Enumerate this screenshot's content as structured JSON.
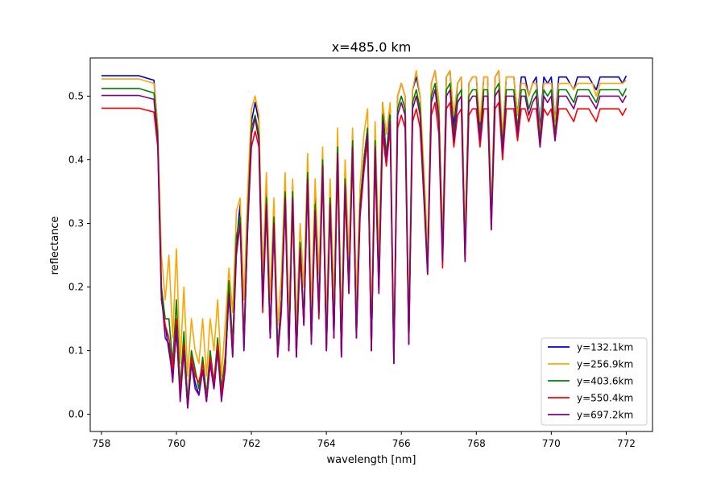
{
  "chart_data": {
    "type": "line",
    "title": "x=485.0 km",
    "xlabel": "wavelength [nm]",
    "ylabel": "reflectance",
    "xlim": [
      757.7,
      772.7
    ],
    "ylim": [
      -0.027,
      0.56
    ],
    "xticks": [
      758,
      760,
      762,
      764,
      766,
      768,
      770,
      772
    ],
    "xtick_labels": [
      "758",
      "760",
      "762",
      "764",
      "766",
      "768",
      "770",
      "772"
    ],
    "yticks": [
      0.0,
      0.1,
      0.2,
      0.3,
      0.4,
      0.5
    ],
    "ytick_labels": [
      "0.0",
      "0.1",
      "0.2",
      "0.3",
      "0.4",
      "0.5"
    ],
    "grid": false,
    "legend_position": "lower right",
    "x": [
      758.0,
      759.0,
      759.4,
      759.5,
      759.6,
      759.7,
      759.8,
      759.9,
      760.0,
      760.1,
      760.2,
      760.3,
      760.4,
      760.5,
      760.6,
      760.7,
      760.8,
      760.9,
      761.0,
      761.1,
      761.2,
      761.3,
      761.4,
      761.5,
      761.6,
      761.7,
      761.8,
      761.9,
      762.0,
      762.1,
      762.2,
      762.3,
      762.4,
      762.5,
      762.6,
      762.7,
      762.8,
      762.9,
      763.0,
      763.1,
      763.2,
      763.3,
      763.4,
      763.5,
      763.6,
      763.7,
      763.8,
      763.9,
      764.0,
      764.1,
      764.2,
      764.3,
      764.4,
      764.5,
      764.6,
      764.7,
      764.8,
      764.9,
      765.0,
      765.1,
      765.2,
      765.3,
      765.4,
      765.5,
      765.6,
      765.7,
      765.8,
      765.9,
      766.0,
      766.1,
      766.2,
      766.3,
      766.4,
      766.5,
      766.6,
      766.7,
      766.8,
      766.9,
      767.0,
      767.1,
      767.2,
      767.3,
      767.4,
      767.5,
      767.6,
      767.7,
      767.8,
      767.9,
      768.0,
      768.1,
      768.2,
      768.3,
      768.4,
      768.5,
      768.6,
      768.7,
      768.8,
      768.9,
      769.0,
      769.1,
      769.2,
      769.3,
      769.4,
      769.5,
      769.6,
      769.7,
      769.8,
      769.9,
      770.0,
      770.1,
      770.2,
      770.3,
      770.4,
      770.5,
      770.6,
      770.7,
      770.8,
      770.9,
      771.0,
      771.1,
      771.2,
      771.3,
      771.4,
      771.5,
      771.6,
      771.7,
      771.8,
      771.9,
      772.0
    ],
    "series": [
      {
        "name": "y=132.1km",
        "color": "#0000cd",
        "values": [
          0.532,
          0.532,
          0.525,
          0.45,
          0.18,
          0.14,
          0.1,
          0.06,
          0.13,
          0.03,
          0.1,
          0.01,
          0.08,
          0.05,
          0.03,
          0.07,
          0.02,
          0.08,
          0.04,
          0.1,
          0.03,
          0.07,
          0.2,
          0.09,
          0.27,
          0.33,
          0.1,
          0.3,
          0.46,
          0.49,
          0.46,
          0.18,
          0.35,
          0.12,
          0.31,
          0.1,
          0.18,
          0.36,
          0.1,
          0.36,
          0.09,
          0.27,
          0.14,
          0.39,
          0.12,
          0.34,
          0.16,
          0.41,
          0.1,
          0.35,
          0.12,
          0.43,
          0.09,
          0.38,
          0.2,
          0.44,
          0.12,
          0.33,
          0.4,
          0.45,
          0.1,
          0.42,
          0.2,
          0.49,
          0.4,
          0.48,
          0.08,
          0.5,
          0.52,
          0.5,
          0.11,
          0.51,
          0.53,
          0.5,
          0.36,
          0.23,
          0.52,
          0.54,
          0.49,
          0.26,
          0.53,
          0.54,
          0.45,
          0.52,
          0.53,
          0.26,
          0.52,
          0.53,
          0.53,
          0.45,
          0.53,
          0.53,
          0.3,
          0.53,
          0.54,
          0.43,
          0.53,
          0.53,
          0.53,
          0.47,
          0.53,
          0.53,
          0.5,
          0.52,
          0.53,
          0.45,
          0.53,
          0.52,
          0.53,
          0.46,
          0.53,
          0.53,
          0.53,
          0.52,
          0.51,
          0.53,
          0.53,
          0.53,
          0.53,
          0.52,
          0.51,
          0.53,
          0.53,
          0.53,
          0.53,
          0.53,
          0.53,
          0.52,
          0.532
        ]
      },
      {
        "name": "y=256.9km",
        "color": "#ffa500",
        "values": [
          0.527,
          0.527,
          0.52,
          0.45,
          0.25,
          0.18,
          0.25,
          0.12,
          0.26,
          0.08,
          0.2,
          0.06,
          0.15,
          0.1,
          0.08,
          0.15,
          0.06,
          0.15,
          0.1,
          0.18,
          0.06,
          0.14,
          0.23,
          0.16,
          0.32,
          0.34,
          0.18,
          0.35,
          0.48,
          0.5,
          0.47,
          0.22,
          0.38,
          0.18,
          0.34,
          0.14,
          0.22,
          0.38,
          0.15,
          0.37,
          0.14,
          0.3,
          0.2,
          0.41,
          0.17,
          0.37,
          0.22,
          0.42,
          0.15,
          0.37,
          0.18,
          0.45,
          0.14,
          0.4,
          0.25,
          0.45,
          0.18,
          0.36,
          0.44,
          0.48,
          0.14,
          0.46,
          0.25,
          0.49,
          0.44,
          0.49,
          0.12,
          0.5,
          0.52,
          0.5,
          0.15,
          0.51,
          0.54,
          0.5,
          0.39,
          0.26,
          0.52,
          0.54,
          0.49,
          0.28,
          0.53,
          0.54,
          0.47,
          0.52,
          0.53,
          0.28,
          0.52,
          0.53,
          0.53,
          0.46,
          0.53,
          0.53,
          0.32,
          0.53,
          0.54,
          0.44,
          0.53,
          0.53,
          0.53,
          0.47,
          0.52,
          0.52,
          0.5,
          0.52,
          0.52,
          0.44,
          0.52,
          0.52,
          0.52,
          0.46,
          0.52,
          0.52,
          0.52,
          0.52,
          0.51,
          0.52,
          0.52,
          0.52,
          0.52,
          0.52,
          0.5,
          0.52,
          0.52,
          0.52,
          0.52,
          0.52,
          0.52,
          0.52,
          0.525
        ]
      },
      {
        "name": "y=403.6km",
        "color": "#008000",
        "values": [
          0.512,
          0.512,
          0.505,
          0.44,
          0.2,
          0.15,
          0.15,
          0.08,
          0.18,
          0.04,
          0.13,
          0.02,
          0.1,
          0.07,
          0.04,
          0.09,
          0.03,
          0.1,
          0.05,
          0.12,
          0.04,
          0.09,
          0.21,
          0.11,
          0.28,
          0.31,
          0.12,
          0.31,
          0.45,
          0.47,
          0.44,
          0.18,
          0.34,
          0.13,
          0.31,
          0.1,
          0.18,
          0.35,
          0.11,
          0.35,
          0.1,
          0.27,
          0.15,
          0.38,
          0.12,
          0.33,
          0.17,
          0.4,
          0.11,
          0.34,
          0.13,
          0.42,
          0.1,
          0.37,
          0.2,
          0.43,
          0.13,
          0.33,
          0.4,
          0.45,
          0.1,
          0.43,
          0.2,
          0.47,
          0.41,
          0.47,
          0.09,
          0.48,
          0.5,
          0.48,
          0.12,
          0.49,
          0.51,
          0.48,
          0.36,
          0.23,
          0.5,
          0.52,
          0.47,
          0.25,
          0.51,
          0.52,
          0.44,
          0.5,
          0.51,
          0.25,
          0.5,
          0.51,
          0.51,
          0.44,
          0.51,
          0.51,
          0.3,
          0.51,
          0.52,
          0.42,
          0.51,
          0.51,
          0.51,
          0.45,
          0.51,
          0.51,
          0.48,
          0.5,
          0.51,
          0.43,
          0.51,
          0.5,
          0.51,
          0.44,
          0.51,
          0.51,
          0.51,
          0.5,
          0.49,
          0.51,
          0.51,
          0.51,
          0.51,
          0.5,
          0.49,
          0.51,
          0.51,
          0.51,
          0.51,
          0.51,
          0.51,
          0.5,
          0.512
        ]
      },
      {
        "name": "y=550.4km",
        "color": "#ff0000",
        "values": [
          0.481,
          0.481,
          0.475,
          0.42,
          0.18,
          0.14,
          0.12,
          0.07,
          0.15,
          0.03,
          0.11,
          0.01,
          0.09,
          0.06,
          0.05,
          0.08,
          0.02,
          0.09,
          0.05,
          0.11,
          0.03,
          0.08,
          0.19,
          0.1,
          0.25,
          0.3,
          0.11,
          0.29,
          0.42,
          0.445,
          0.42,
          0.16,
          0.32,
          0.12,
          0.29,
          0.09,
          0.16,
          0.33,
          0.1,
          0.33,
          0.09,
          0.25,
          0.14,
          0.36,
          0.11,
          0.31,
          0.15,
          0.38,
          0.1,
          0.32,
          0.12,
          0.4,
          0.09,
          0.35,
          0.19,
          0.41,
          0.12,
          0.31,
          0.38,
          0.43,
          0.1,
          0.4,
          0.19,
          0.44,
          0.39,
          0.45,
          0.08,
          0.45,
          0.47,
          0.45,
          0.11,
          0.46,
          0.48,
          0.45,
          0.34,
          0.22,
          0.47,
          0.49,
          0.44,
          0.23,
          0.48,
          0.49,
          0.42,
          0.47,
          0.48,
          0.24,
          0.47,
          0.48,
          0.48,
          0.42,
          0.48,
          0.48,
          0.29,
          0.48,
          0.49,
          0.4,
          0.48,
          0.48,
          0.48,
          0.43,
          0.48,
          0.48,
          0.46,
          0.48,
          0.48,
          0.42,
          0.48,
          0.47,
          0.48,
          0.43,
          0.48,
          0.48,
          0.48,
          0.47,
          0.46,
          0.48,
          0.48,
          0.48,
          0.48,
          0.47,
          0.46,
          0.48,
          0.48,
          0.48,
          0.48,
          0.48,
          0.48,
          0.47,
          0.481
        ]
      },
      {
        "name": "y=697.2km",
        "color": "#800080",
        "values": [
          0.501,
          0.501,
          0.495,
          0.43,
          0.19,
          0.12,
          0.11,
          0.05,
          0.14,
          0.02,
          0.1,
          0.01,
          0.08,
          0.04,
          0.03,
          0.07,
          0.02,
          0.08,
          0.04,
          0.1,
          0.02,
          0.07,
          0.19,
          0.09,
          0.26,
          0.3,
          0.1,
          0.29,
          0.44,
          0.465,
          0.43,
          0.17,
          0.33,
          0.12,
          0.3,
          0.09,
          0.17,
          0.34,
          0.1,
          0.34,
          0.09,
          0.26,
          0.14,
          0.37,
          0.11,
          0.32,
          0.16,
          0.39,
          0.1,
          0.33,
          0.12,
          0.41,
          0.09,
          0.36,
          0.19,
          0.42,
          0.12,
          0.32,
          0.39,
          0.44,
          0.1,
          0.42,
          0.19,
          0.46,
          0.4,
          0.46,
          0.08,
          0.47,
          0.49,
          0.47,
          0.11,
          0.48,
          0.5,
          0.47,
          0.35,
          0.22,
          0.49,
          0.51,
          0.46,
          0.24,
          0.5,
          0.51,
          0.43,
          0.49,
          0.5,
          0.24,
          0.49,
          0.5,
          0.5,
          0.43,
          0.5,
          0.5,
          0.29,
          0.5,
          0.51,
          0.41,
          0.5,
          0.5,
          0.5,
          0.44,
          0.5,
          0.5,
          0.47,
          0.49,
          0.5,
          0.42,
          0.5,
          0.49,
          0.5,
          0.43,
          0.5,
          0.5,
          0.5,
          0.49,
          0.48,
          0.5,
          0.5,
          0.5,
          0.5,
          0.49,
          0.48,
          0.5,
          0.5,
          0.5,
          0.5,
          0.5,
          0.5,
          0.49,
          0.501
        ]
      }
    ]
  }
}
